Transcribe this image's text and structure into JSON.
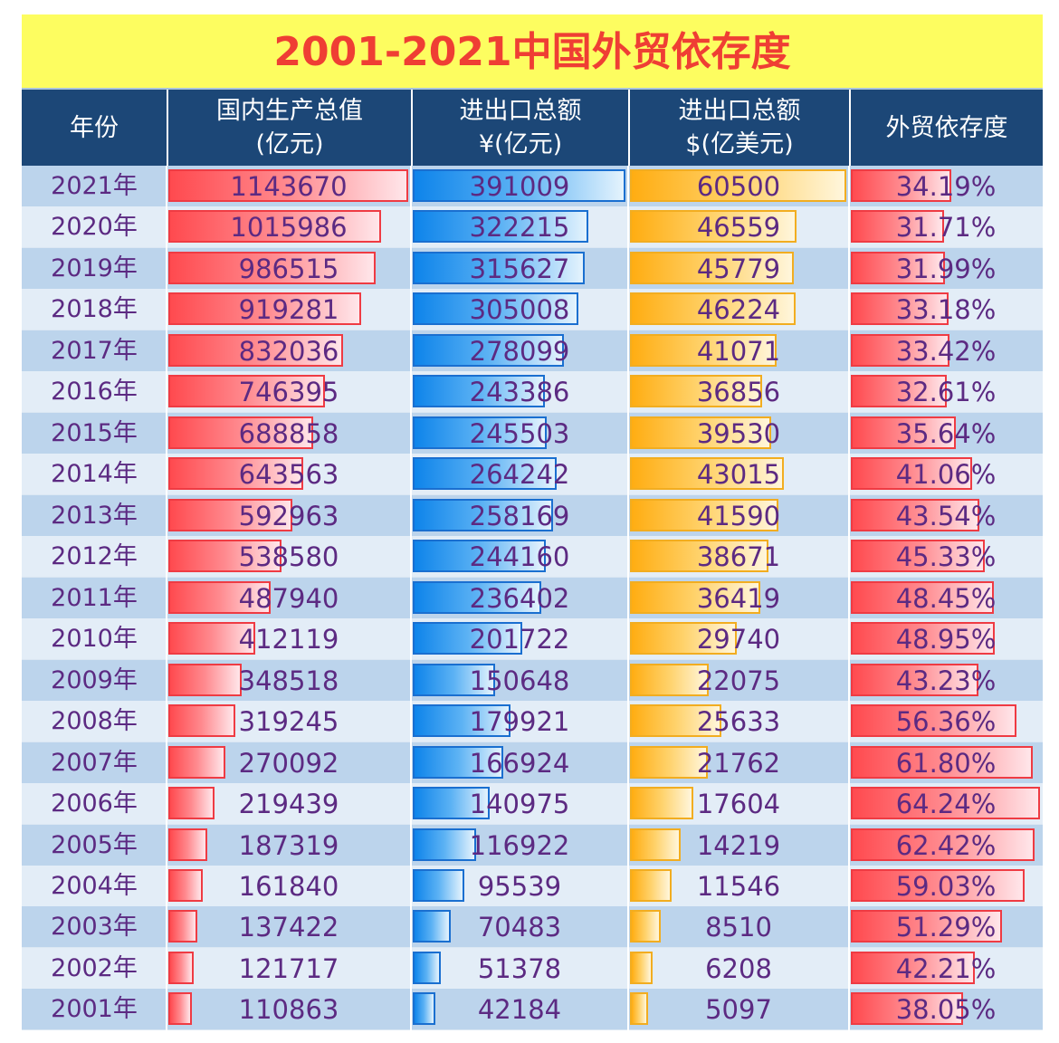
{
  "chart_data": {
    "type": "table",
    "title": "2001-2021中国外贸依存度",
    "columns": [
      {
        "line1": "年份",
        "line2": ""
      },
      {
        "line1": "国内生产总值",
        "line2": "(亿元)"
      },
      {
        "line1": "进出口总额",
        "line2": "¥(亿元)"
      },
      {
        "line1": "进出口总额",
        "line2": "$(亿美元)"
      },
      {
        "line1": "外贸依存度",
        "line2": ""
      }
    ],
    "series": [
      {
        "name": "国内生产总值(亿元)",
        "max": 1143670,
        "values": [
          1143670,
          1015986,
          986515,
          919281,
          832036,
          746395,
          688858,
          643563,
          592963,
          538580,
          487940,
          412119,
          348518,
          319245,
          270092,
          219439,
          187319,
          161840,
          137422,
          121717,
          110863
        ]
      },
      {
        "name": "进出口总额¥(亿元)",
        "max": 391009,
        "values": [
          391009,
          322215,
          315627,
          305008,
          278099,
          243386,
          245503,
          264242,
          258169,
          244160,
          236402,
          201722,
          150648,
          179921,
          166924,
          140975,
          116922,
          95539,
          70483,
          51378,
          42184
        ]
      },
      {
        "name": "进出口总额$(亿美元)",
        "max": 60500,
        "values": [
          60500,
          46559,
          45779,
          46224,
          41071,
          36856,
          39530,
          43015,
          41590,
          38671,
          36419,
          29740,
          22075,
          25633,
          21762,
          17604,
          14219,
          11546,
          8510,
          6208,
          5097
        ]
      },
      {
        "name": "外贸依存度",
        "max": 64.24,
        "values": [
          34.19,
          31.71,
          31.99,
          33.18,
          33.42,
          32.61,
          35.64,
          41.06,
          43.54,
          45.33,
          48.45,
          48.95,
          43.23,
          56.36,
          61.8,
          64.24,
          62.42,
          59.03,
          51.29,
          42.21,
          38.05
        ]
      }
    ],
    "rows": [
      {
        "year": "2021年",
        "gdp": "1143670",
        "cny": "391009",
        "usd": "60500",
        "dep": "34.19%"
      },
      {
        "year": "2020年",
        "gdp": "1015986",
        "cny": "322215",
        "usd": "46559",
        "dep": "31.71%"
      },
      {
        "year": "2019年",
        "gdp": "986515",
        "cny": "315627",
        "usd": "45779",
        "dep": "31.99%"
      },
      {
        "year": "2018年",
        "gdp": "919281",
        "cny": "305008",
        "usd": "46224",
        "dep": "33.18%"
      },
      {
        "year": "2017年",
        "gdp": "832036",
        "cny": "278099",
        "usd": "41071",
        "dep": "33.42%"
      },
      {
        "year": "2016年",
        "gdp": "746395",
        "cny": "243386",
        "usd": "36856",
        "dep": "32.61%"
      },
      {
        "year": "2015年",
        "gdp": "688858",
        "cny": "245503",
        "usd": "39530",
        "dep": "35.64%"
      },
      {
        "year": "2014年",
        "gdp": "643563",
        "cny": "264242",
        "usd": "43015",
        "dep": "41.06%"
      },
      {
        "year": "2013年",
        "gdp": "592963",
        "cny": "258169",
        "usd": "41590",
        "dep": "43.54%"
      },
      {
        "year": "2012年",
        "gdp": "538580",
        "cny": "244160",
        "usd": "38671",
        "dep": "45.33%"
      },
      {
        "year": "2011年",
        "gdp": "487940",
        "cny": "236402",
        "usd": "36419",
        "dep": "48.45%"
      },
      {
        "year": "2010年",
        "gdp": "412119",
        "cny": "201722",
        "usd": "29740",
        "dep": "48.95%"
      },
      {
        "year": "2009年",
        "gdp": "348518",
        "cny": "150648",
        "usd": "22075",
        "dep": "43.23%"
      },
      {
        "year": "2008年",
        "gdp": "319245",
        "cny": "179921",
        "usd": "25633",
        "dep": "56.36%"
      },
      {
        "year": "2007年",
        "gdp": "270092",
        "cny": "166924",
        "usd": "21762",
        "dep": "61.80%"
      },
      {
        "year": "2006年",
        "gdp": "219439",
        "cny": "140975",
        "usd": "17604",
        "dep": "64.24%"
      },
      {
        "year": "2005年",
        "gdp": "187319",
        "cny": "116922",
        "usd": "14219",
        "dep": "62.42%"
      },
      {
        "year": "2004年",
        "gdp": "161840",
        "cny": "95539",
        "usd": "11546",
        "dep": "59.03%"
      },
      {
        "year": "2003年",
        "gdp": "137422",
        "cny": "70483",
        "usd": "8510",
        "dep": "51.29%"
      },
      {
        "year": "2002年",
        "gdp": "121717",
        "cny": "51378",
        "usd": "6208",
        "dep": "42.21%"
      },
      {
        "year": "2001年",
        "gdp": "110863",
        "cny": "42184",
        "usd": "5097",
        "dep": "38.05%"
      }
    ]
  },
  "colors": {
    "title_bg": "#fdfd60",
    "title_text": "#ef3e34",
    "header_bg": "#1c4777",
    "row_odd": "#bcd4ec",
    "row_even": "#e3edf7",
    "text": "#5c2a82",
    "red": "#ff4a4f",
    "blue": "#0e84ea",
    "orange": "#ffad12"
  }
}
